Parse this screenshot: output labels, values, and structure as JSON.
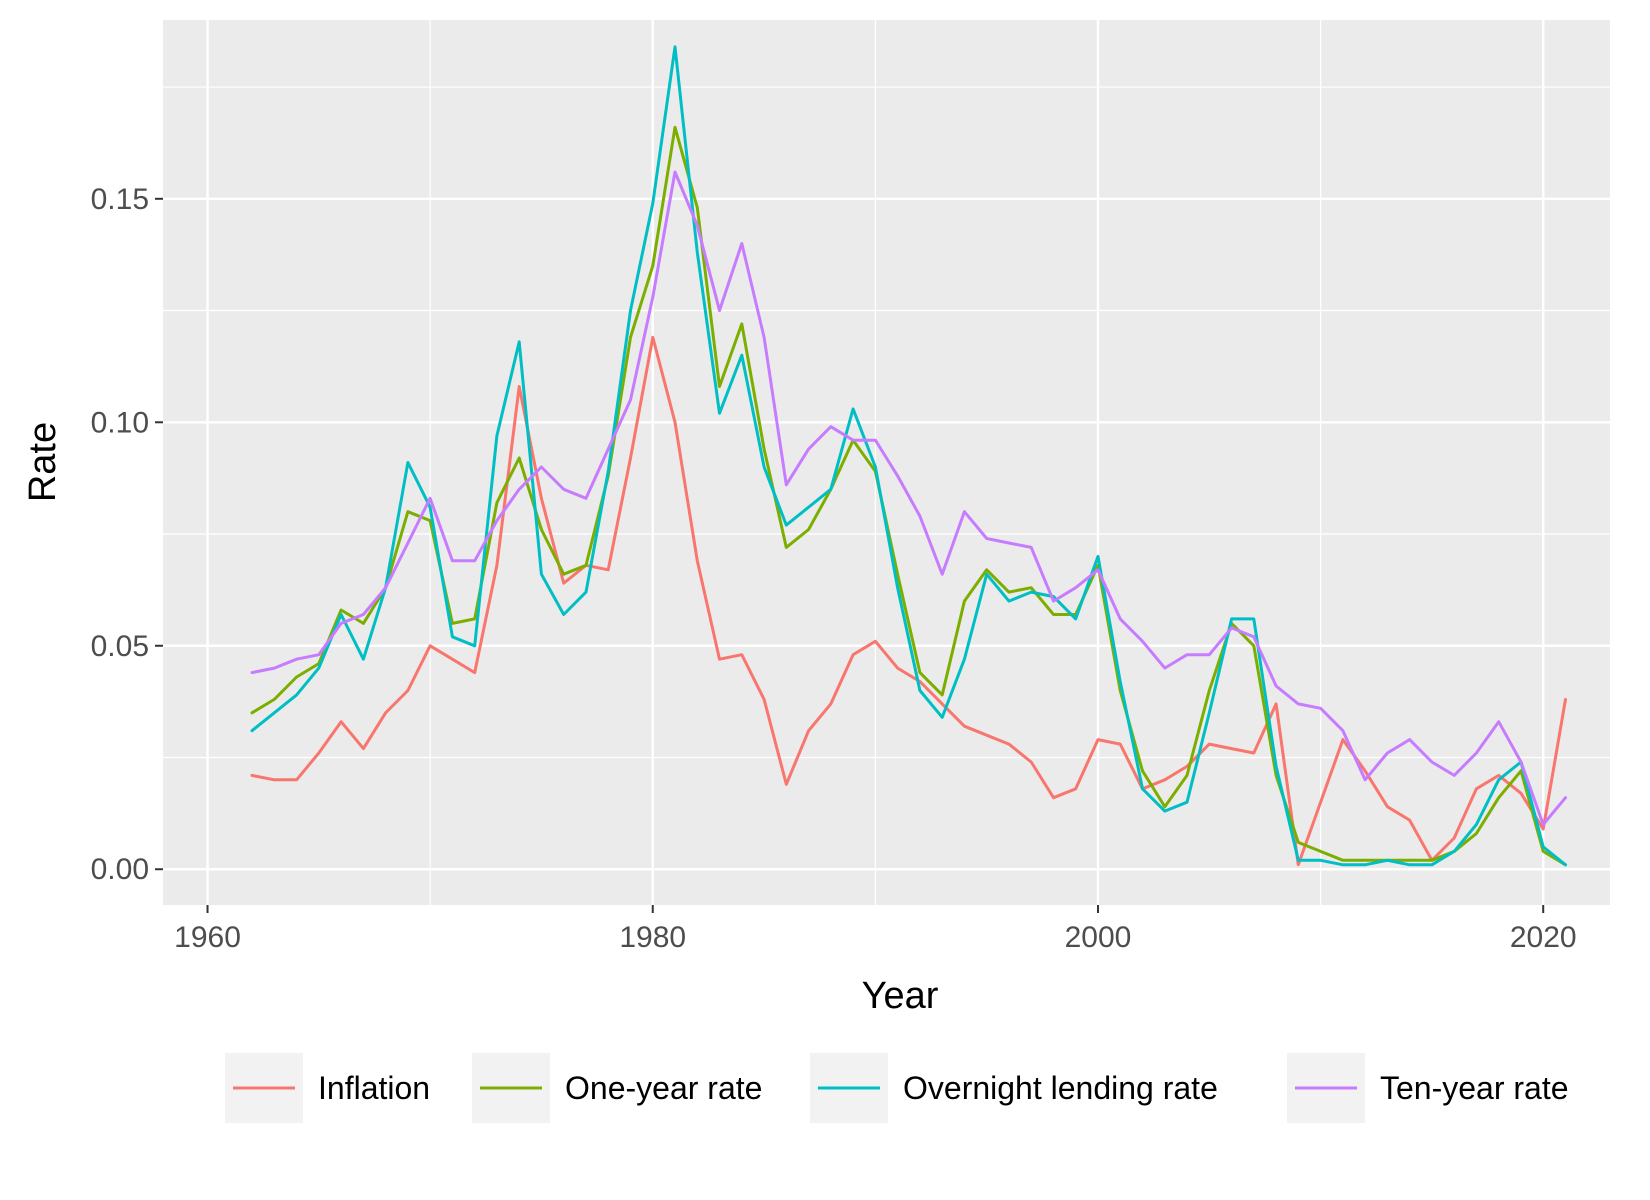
{
  "chart_data": {
    "type": "line",
    "title": "",
    "xlabel": "Year",
    "ylabel": "Rate",
    "xlim": [
      1958,
      2023
    ],
    "ylim": [
      -0.008,
      0.19
    ],
    "x_ticks": [
      1960,
      1980,
      2000,
      2020
    ],
    "x_tick_labels": [
      "1960",
      "1980",
      "2000",
      "2020"
    ],
    "y_ticks": [
      0.0,
      0.05,
      0.1,
      0.15
    ],
    "y_tick_labels": [
      "0.00",
      "0.05",
      "0.10",
      "0.15"
    ],
    "grid": true,
    "legend_position": "bottom",
    "x": [
      1962,
      1963,
      1964,
      1965,
      1966,
      1967,
      1968,
      1969,
      1970,
      1971,
      1972,
      1973,
      1974,
      1975,
      1976,
      1977,
      1978,
      1979,
      1980,
      1981,
      1982,
      1983,
      1984,
      1985,
      1986,
      1987,
      1988,
      1989,
      1990,
      1991,
      1992,
      1993,
      1994,
      1995,
      1996,
      1997,
      1998,
      1999,
      2000,
      2001,
      2002,
      2003,
      2004,
      2005,
      2006,
      2007,
      2008,
      2009,
      2010,
      2011,
      2012,
      2013,
      2014,
      2015,
      2016,
      2017,
      2018,
      2019,
      2020,
      2021
    ],
    "series": [
      {
        "name": "Inflation",
        "color": "#F8766D",
        "values": [
          0.021,
          0.02,
          0.02,
          0.026,
          0.033,
          0.027,
          0.035,
          0.04,
          0.05,
          0.047,
          0.044,
          0.068,
          0.108,
          0.083,
          0.064,
          0.068,
          0.067,
          0.092,
          0.119,
          0.1,
          0.069,
          0.047,
          0.048,
          0.038,
          0.019,
          0.031,
          0.037,
          0.048,
          0.051,
          0.045,
          0.042,
          0.037,
          0.032,
          0.03,
          0.028,
          0.024,
          0.016,
          0.018,
          0.029,
          0.028,
          0.018,
          0.02,
          0.023,
          0.028,
          0.027,
          0.026,
          0.037,
          0.001,
          0.015,
          0.029,
          0.022,
          0.014,
          0.011,
          0.002,
          0.007,
          0.018,
          0.021,
          0.017,
          0.009,
          0.038
        ]
      },
      {
        "name": "One-year rate",
        "color": "#7CAE00",
        "values": [
          0.035,
          0.038,
          0.043,
          0.046,
          0.058,
          0.055,
          0.063,
          0.08,
          0.078,
          0.055,
          0.056,
          0.082,
          0.092,
          0.076,
          0.066,
          0.068,
          0.088,
          0.119,
          0.135,
          0.166,
          0.148,
          0.108,
          0.122,
          0.094,
          0.072,
          0.076,
          0.085,
          0.096,
          0.089,
          0.066,
          0.044,
          0.039,
          0.06,
          0.067,
          0.062,
          0.063,
          0.057,
          0.057,
          0.068,
          0.04,
          0.022,
          0.014,
          0.021,
          0.04,
          0.055,
          0.05,
          0.021,
          0.006,
          0.004,
          0.002,
          0.002,
          0.002,
          0.002,
          0.002,
          0.004,
          0.008,
          0.016,
          0.022,
          0.004,
          0.001
        ]
      },
      {
        "name": "Overnight lending rate",
        "color": "#00BFC4",
        "values": [
          0.031,
          0.035,
          0.039,
          0.045,
          0.057,
          0.047,
          0.063,
          0.091,
          0.081,
          0.052,
          0.05,
          0.097,
          0.118,
          0.066,
          0.057,
          0.062,
          0.089,
          0.125,
          0.149,
          0.184,
          0.138,
          0.102,
          0.115,
          0.09,
          0.077,
          0.081,
          0.085,
          0.103,
          0.09,
          0.063,
          0.04,
          0.034,
          0.047,
          0.066,
          0.06,
          0.062,
          0.061,
          0.056,
          0.07,
          0.042,
          0.018,
          0.013,
          0.015,
          0.035,
          0.056,
          0.056,
          0.023,
          0.002,
          0.002,
          0.001,
          0.001,
          0.002,
          0.001,
          0.001,
          0.004,
          0.01,
          0.02,
          0.024,
          0.005,
          0.001
        ]
      },
      {
        "name": "Ten-year rate",
        "color": "#C77CFF",
        "values": [
          0.044,
          0.045,
          0.047,
          0.048,
          0.055,
          0.057,
          0.063,
          0.073,
          0.083,
          0.069,
          0.069,
          0.078,
          0.085,
          0.09,
          0.085,
          0.083,
          0.094,
          0.105,
          0.128,
          0.156,
          0.144,
          0.125,
          0.14,
          0.119,
          0.086,
          0.094,
          0.099,
          0.096,
          0.096,
          0.088,
          0.079,
          0.066,
          0.08,
          0.074,
          0.073,
          0.072,
          0.06,
          0.063,
          0.067,
          0.056,
          0.051,
          0.045,
          0.048,
          0.048,
          0.054,
          0.052,
          0.041,
          0.037,
          0.036,
          0.031,
          0.02,
          0.026,
          0.029,
          0.024,
          0.021,
          0.026,
          0.033,
          0.024,
          0.01,
          0.016
        ]
      }
    ]
  }
}
